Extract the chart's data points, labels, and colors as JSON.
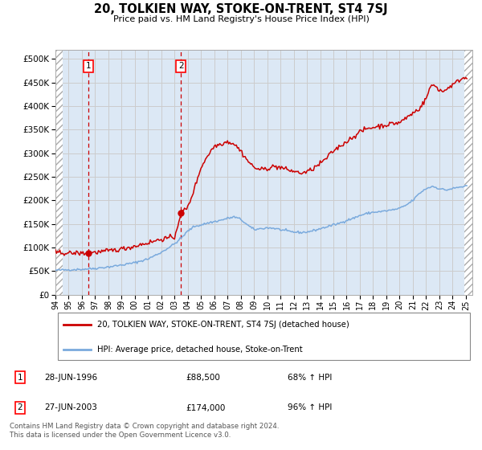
{
  "title": "20, TOLKIEN WAY, STOKE-ON-TRENT, ST4 7SJ",
  "subtitle": "Price paid vs. HM Land Registry's House Price Index (HPI)",
  "legend_line1": "20, TOLKIEN WAY, STOKE-ON-TRENT, ST4 7SJ (detached house)",
  "legend_line2": "HPI: Average price, detached house, Stoke-on-Trent",
  "footer": "Contains HM Land Registry data © Crown copyright and database right 2024.\nThis data is licensed under the Open Government Licence v3.0.",
  "purchase1_date": "28-JUN-1996",
  "purchase1_price": 88500,
  "purchase1_pct": "68% ↑ HPI",
  "purchase2_date": "27-JUN-2003",
  "purchase2_price": 174000,
  "purchase2_pct": "96% ↑ HPI",
  "hpi_color": "#7aaadd",
  "price_color": "#cc0000",
  "marker_color": "#cc0000",
  "ylim": [
    0,
    520000
  ],
  "yticks": [
    0,
    50000,
    100000,
    150000,
    200000,
    250000,
    300000,
    350000,
    400000,
    450000,
    500000
  ],
  "xlim_start": 1994.0,
  "xlim_end": 2025.5,
  "hatch_color": "#aaaaaa",
  "grid_color": "#cccccc",
  "bg_color": "#dce8f5"
}
